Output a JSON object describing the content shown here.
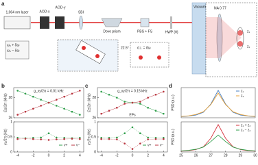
{
  "diagram": {
    "label": "a",
    "laser": "1,064 nm laser",
    "aod_x": "AOD-x",
    "aod_y": "AOD-y",
    "sbi": "SBI",
    "dove": "Dove prism",
    "pbs": "PBS + FS",
    "hwp": "HWP (θ)",
    "vacuum": "Vacuum",
    "na": "NA 0.77",
    "freq_plus": "ω₀ + δω",
    "freq_minus": "ω₀ − δω",
    "angle": "22.5°",
    "spacing": "d⊥ = δω",
    "z1": "z₁",
    "z2": "z₂"
  },
  "chart_data": [
    {
      "type": "line",
      "label": "b",
      "annotation": "g_xy/2π = 0.01 kHz",
      "ylabel": "Ω±/2π (kHz)",
      "x": [
        -4,
        -3,
        -2,
        -1,
        0,
        1,
        2,
        3,
        4
      ],
      "xlim": [
        -4.5,
        4.5
      ],
      "ylim": [
        26,
        29
      ],
      "yticks": [
        26,
        28
      ],
      "series": [
        {
          "color": "#2e9e4a",
          "values": [
            28.7,
            28.4,
            28.1,
            27.8,
            27.5,
            27.2,
            26.9,
            26.6,
            26.3
          ]
        },
        {
          "color": "#b8323c",
          "values": [
            26.3,
            26.6,
            26.9,
            27.2,
            27.5,
            27.8,
            28.1,
            28.4,
            28.7
          ]
        }
      ]
    },
    {
      "type": "line",
      "ylabel": "γ±/2π (Hz)",
      "x": [
        -4,
        -3,
        -2,
        -1,
        0,
        1,
        2,
        3,
        4
      ],
      "xlim": [
        -4.5,
        4.5
      ],
      "ylim": [
        0,
        1
      ],
      "yticks": [
        0,
        0.5,
        1
      ],
      "xticks": [
        -4,
        -2,
        0,
        2,
        4
      ],
      "legend": "lower right",
      "series": [
        {
          "name": "ν+",
          "color": "#2e9e4a",
          "values": [
            0.47,
            0.46,
            0.47,
            0.48,
            0.62,
            0.48,
            0.47,
            0.46,
            0.47
          ]
        },
        {
          "name": "ν−",
          "color": "#b8323c",
          "values": [
            0.43,
            0.44,
            0.43,
            0.42,
            0.4,
            0.42,
            0.43,
            0.44,
            0.43
          ]
        }
      ]
    },
    {
      "type": "line",
      "label": "c",
      "annotation": "g_xy/2π = 0.15 kHz",
      "note": "EPs",
      "ylabel": "Ω±/2π (kHz)",
      "x": [
        -4,
        -3,
        -2,
        -1,
        0,
        1,
        2,
        3,
        4
      ],
      "xlim": [
        -4.5,
        4.5
      ],
      "ylim": [
        26,
        29
      ],
      "yticks": [
        26,
        28
      ],
      "series": [
        {
          "color": "#2e9e4a",
          "values": [
            28.6,
            28.3,
            28.0,
            27.6,
            27.5,
            27.4,
            27.0,
            26.7,
            26.4
          ]
        },
        {
          "color": "#b8323c",
          "values": [
            26.4,
            26.7,
            27.0,
            27.4,
            27.5,
            27.6,
            28.0,
            28.3,
            28.6
          ]
        }
      ]
    },
    {
      "type": "line",
      "ylabel": "γ±/2π (Hz)",
      "x": [
        -4,
        -3,
        -2,
        -1,
        0,
        1,
        2,
        3,
        4
      ],
      "xlim": [
        -4.5,
        4.5
      ],
      "ylim": [
        0,
        1
      ],
      "yticks": [
        0,
        0.5,
        1
      ],
      "xticks": [
        -4,
        -2,
        0,
        2,
        4
      ],
      "legend": "lower right",
      "series": [
        {
          "name": "ν+",
          "color": "#2e9e4a",
          "values": [
            0.47,
            0.47,
            0.48,
            0.62,
            0.82,
            0.62,
            0.48,
            0.47,
            0.47
          ]
        },
        {
          "name": "ν−",
          "color": "#b8323c",
          "values": [
            0.43,
            0.43,
            0.42,
            0.28,
            0.1,
            0.28,
            0.42,
            0.43,
            0.43
          ]
        }
      ]
    },
    {
      "type": "line",
      "label": "d",
      "ylabel": "PSD (a.u.)",
      "x": [
        25,
        25.5,
        26,
        26.5,
        27,
        27.5,
        28,
        28.5,
        29,
        29.5,
        30
      ],
      "xlim": [
        25,
        30
      ],
      "ylim": [
        0,
        1.1
      ],
      "legend": "upper right",
      "series": [
        {
          "name": "z₁",
          "color": "#4a7fc1",
          "values": [
            0.04,
            0.06,
            0.1,
            0.2,
            0.5,
            1,
            0.5,
            0.2,
            0.1,
            0.06,
            0.04
          ]
        },
        {
          "name": "z₂",
          "color": "#e8a33a",
          "values": [
            0.05,
            0.07,
            0.12,
            0.22,
            0.48,
            0.9,
            0.48,
            0.22,
            0.12,
            0.07,
            0.05
          ]
        }
      ]
    },
    {
      "type": "line",
      "ylabel": "PSD (a.u.)",
      "x": [
        25,
        25.5,
        26,
        26.5,
        27,
        27.5,
        28,
        28.5,
        29,
        29.5,
        30
      ],
      "xlim": [
        25,
        30
      ],
      "ylim": [
        0,
        1.1
      ],
      "xticks": [
        25,
        26,
        27,
        28,
        29,
        30
      ],
      "legend": "upper right",
      "series": [
        {
          "name": "z₁ + z₂",
          "color": "#d6333d",
          "values": [
            0.03,
            0.05,
            0.09,
            0.19,
            0.5,
            1,
            0.5,
            0.19,
            0.09,
            0.05,
            0.03
          ]
        },
        {
          "name": "z₁ − z₂",
          "color": "#2e9e4a",
          "values": [
            0.04,
            0.06,
            0.1,
            0.18,
            0.38,
            0.62,
            0.38,
            0.18,
            0.1,
            0.06,
            0.04
          ]
        }
      ]
    }
  ]
}
